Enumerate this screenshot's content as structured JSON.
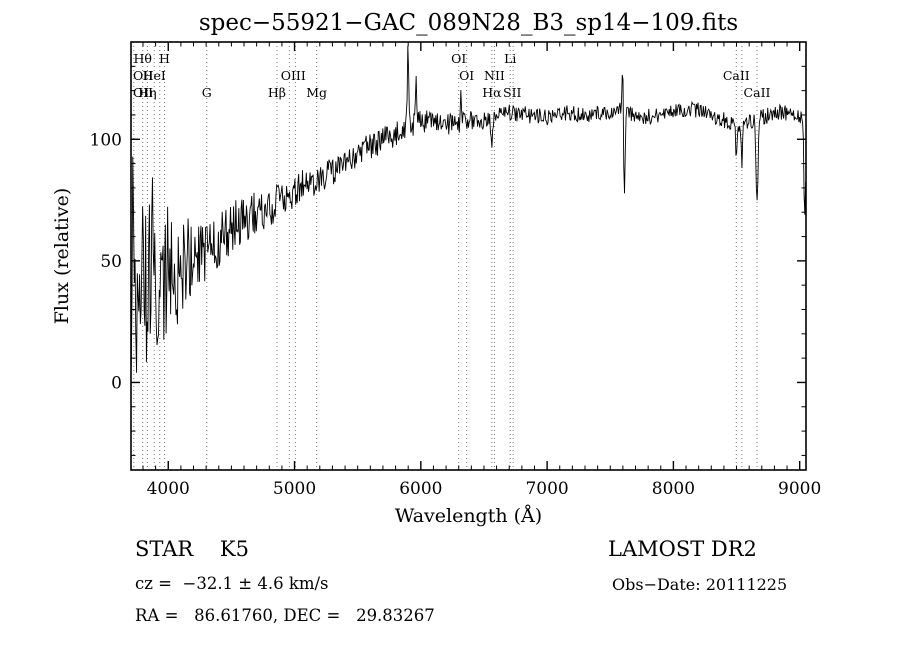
{
  "title": "spec−55921−GAC_089N28_B3_sp14−109.fits",
  "footer": {
    "class_label": "STAR    K5",
    "survey": "LAMOST DR2",
    "cz": "cz =  −32.1 ± 4.6 km/s",
    "obs_date": "Obs−Date: 20111225",
    "radec": "RA =   86.61760, DEC =   29.83267"
  },
  "chart_data": {
    "type": "line",
    "title": "spec−55921−GAC_089N28_B3_sp14−109.fits",
    "xlabel": "Wavelength (Å)",
    "ylabel": "Flux (relative)",
    "xlim": [
      3705,
      9050
    ],
    "ylim": [
      -36,
      140
    ],
    "xticks": [
      4000,
      5000,
      6000,
      7000,
      8000,
      9000
    ],
    "yticks": [
      0,
      50,
      100
    ],
    "x_minor_step": 100,
    "y_minor_step": 10,
    "grid": false,
    "line_color": "#000000",
    "marker_line_color": "#777777",
    "spectral_lines": [
      3727,
      3798,
      3835,
      3889,
      3933,
      3970,
      4305,
      4861,
      4959,
      5007,
      5175,
      6300,
      6363,
      6563,
      6583,
      6708,
      6731,
      8498,
      8542,
      8662
    ],
    "line_markers": [
      {
        "label": "Hθ",
        "wl": 3798,
        "row": 1
      },
      {
        "label": "H",
        "wl": 3970,
        "row": 1
      },
      {
        "label": "OI",
        "wl": 6300,
        "row": 1
      },
      {
        "label": "Li",
        "wl": 6708,
        "row": 1
      },
      {
        "label": "OII",
        "wl": 3727,
        "row": 2
      },
      {
        "label": "HeI",
        "wl": 3889,
        "row": 2
      },
      {
        "label": "OIII",
        "wl": 4990,
        "row": 2
      },
      {
        "label": "OI",
        "wl": 6363,
        "row": 2
      },
      {
        "label": "NII",
        "wl": 6583,
        "row": 2
      },
      {
        "label": "CaII",
        "wl": 8498,
        "row": 2
      },
      {
        "label": "OII",
        "wl": 3729,
        "row": 3
      },
      {
        "label": "Hη",
        "wl": 3835,
        "row": 3
      },
      {
        "label": "G",
        "wl": 4305,
        "row": 3
      },
      {
        "label": "Hβ",
        "wl": 4861,
        "row": 3
      },
      {
        "label": "Mg",
        "wl": 5175,
        "row": 3
      },
      {
        "label": "Hα",
        "wl": 6563,
        "row": 3
      },
      {
        "label": "SII",
        "wl": 6724,
        "row": 3
      },
      {
        "label": "CaII",
        "wl": 8662,
        "row": 3
      }
    ],
    "continuum": [
      [
        3705,
        46
      ],
      [
        3760,
        42
      ],
      [
        3830,
        38
      ],
      [
        3900,
        37
      ],
      [
        3960,
        41
      ],
      [
        4000,
        44
      ],
      [
        4100,
        47
      ],
      [
        4250,
        53
      ],
      [
        4400,
        59
      ],
      [
        4550,
        65
      ],
      [
        4700,
        70
      ],
      [
        4850,
        74
      ],
      [
        5000,
        79
      ],
      [
        5150,
        83
      ],
      [
        5300,
        87
      ],
      [
        5450,
        92
      ],
      [
        5600,
        97
      ],
      [
        5750,
        101
      ],
      [
        5900,
        105
      ],
      [
        6000,
        107
      ],
      [
        6100,
        108
      ],
      [
        6250,
        106
      ],
      [
        6400,
        108
      ],
      [
        6550,
        108
      ],
      [
        6700,
        111
      ],
      [
        6850,
        110
      ],
      [
        7000,
        109
      ],
      [
        7150,
        111
      ],
      [
        7300,
        110
      ],
      [
        7450,
        111
      ],
      [
        7600,
        112
      ],
      [
        7750,
        109
      ],
      [
        7900,
        110
      ],
      [
        8050,
        112
      ],
      [
        8200,
        112
      ],
      [
        8350,
        109
      ],
      [
        8500,
        106
      ],
      [
        8650,
        108
      ],
      [
        8800,
        111
      ],
      [
        8950,
        110
      ],
      [
        9050,
        108
      ]
    ],
    "noise_envelope": [
      [
        3705,
        52
      ],
      [
        3780,
        58
      ],
      [
        3870,
        50
      ],
      [
        3950,
        36
      ],
      [
        4050,
        24
      ],
      [
        4200,
        16
      ],
      [
        4400,
        12
      ],
      [
        4700,
        9
      ],
      [
        5000,
        7
      ],
      [
        5300,
        6
      ],
      [
        5600,
        5.5
      ],
      [
        5900,
        5
      ],
      [
        6200,
        4.5
      ],
      [
        6600,
        3.5
      ],
      [
        7200,
        3.2
      ],
      [
        8000,
        3.2
      ],
      [
        9050,
        3.5
      ]
    ],
    "features": [
      {
        "center": 3718,
        "amp": 30,
        "width": 6
      },
      {
        "center": 3845,
        "amp": -28,
        "width": 5
      },
      {
        "center": 3935,
        "amp": -26,
        "width": 4
      },
      {
        "center": 5898,
        "amp": 38,
        "width": 5
      },
      {
        "center": 5962,
        "amp": 18,
        "width": 5
      },
      {
        "center": 6318,
        "amp": 10,
        "width": 4
      },
      {
        "center": 6563,
        "amp": -9,
        "width": 8
      },
      {
        "center": 7598,
        "amp": 22,
        "width": 4
      },
      {
        "center": 7612,
        "amp": -33,
        "width": 6
      },
      {
        "center": 8498,
        "amp": -12,
        "width": 6
      },
      {
        "center": 8542,
        "amp": -16,
        "width": 6
      },
      {
        "center": 8662,
        "amp": -35,
        "width": 8
      },
      {
        "center": 9040,
        "amp": -38,
        "width": 7
      }
    ],
    "noise_seed": 20111225,
    "sample_step": 6
  }
}
